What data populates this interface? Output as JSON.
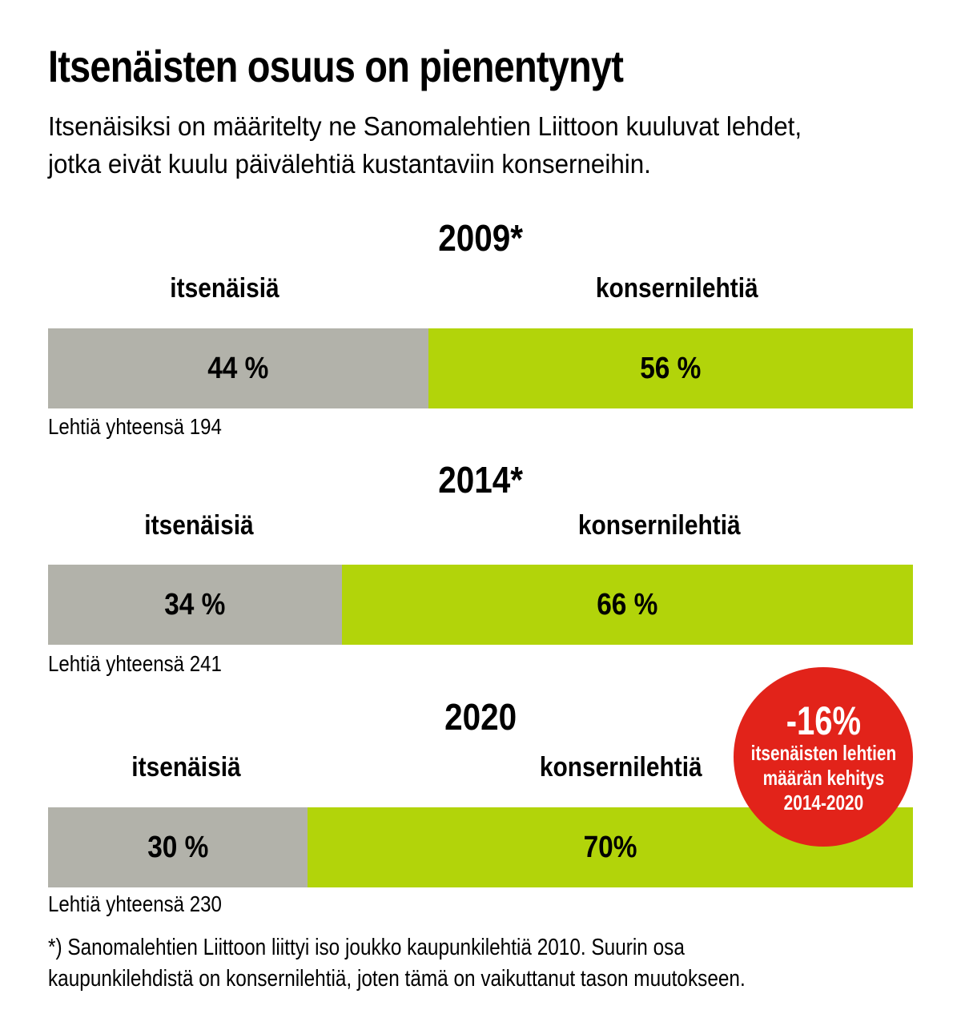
{
  "page": {
    "title": "Itsenäisten osuus on pienentynyt",
    "subtitle_lines": [
      "Itsenäisiksi on määritelty ne Sanomalehtien Liittoon kuuluvat lehdet,",
      "jotka eivät kuulu päivälehtiä kustantaviin konserneihin."
    ],
    "footnote_lines": [
      "*) Sanomalehtien Liittoon liittyi iso joukko kaupunkilehtiä 2010. Suurin osa",
      "kaupunkilehdistä on konsernilehtiä, joten tämä on vaikuttanut tason muutokseen."
    ]
  },
  "colors": {
    "independent_gray": "#b2b2aa",
    "group_green": "#b2d40a",
    "badge_red": "#e2231a",
    "text": "#000000",
    "badge_text": "#ffffff",
    "background": "#ffffff"
  },
  "badge": {
    "value": "-16%",
    "lines": [
      "itsenäisten lehtien",
      "määrän kehitys",
      "2014-2020"
    ]
  },
  "chart_data": [
    {
      "type": "bar",
      "title": "2009*",
      "categories": [
        "itsenäisiä",
        "konsernilehtiä"
      ],
      "values": [
        44,
        56
      ],
      "value_labels": [
        "44 %",
        "56 %"
      ],
      "colors": [
        "#b2b2aa",
        "#b2d40a"
      ],
      "total_caption": "Lehtiä yhteensä 194",
      "total": 194,
      "xlim": [
        0,
        100
      ],
      "unit": "%"
    },
    {
      "type": "bar",
      "title": "2014*",
      "categories": [
        "itsenäisiä",
        "konsernilehtiä"
      ],
      "values": [
        34,
        66
      ],
      "value_labels": [
        "34 %",
        "66 %"
      ],
      "colors": [
        "#b2b2aa",
        "#b2d40a"
      ],
      "total_caption": "Lehtiä yhteensä 241",
      "total": 241,
      "xlim": [
        0,
        100
      ],
      "unit": "%"
    },
    {
      "type": "bar",
      "title": "2020",
      "categories": [
        "itsenäisiä",
        "konsernilehtiä"
      ],
      "values": [
        30,
        70
      ],
      "value_labels": [
        "30 %",
        "70%"
      ],
      "colors": [
        "#b2b2aa",
        "#b2d40a"
      ],
      "total_caption": "Lehtiä yhteensä 230",
      "total": 230,
      "xlim": [
        0,
        100
      ],
      "unit": "%"
    }
  ]
}
